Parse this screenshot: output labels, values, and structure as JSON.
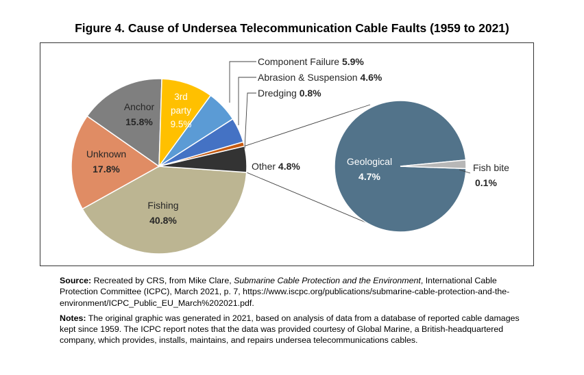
{
  "chart_data": {
    "type": "pie",
    "title": "Figure 4. Cause of Undersea Telecommunication Cable Faults (1959 to 2021)",
    "main_slices": [
      {
        "key": "fishing",
        "name": "Fishing",
        "value": 40.8,
        "value_label": "40.8%",
        "color": "#BCB592"
      },
      {
        "key": "unknown",
        "name": "Unknown",
        "value": 17.8,
        "value_label": "17.8%",
        "color": "#E08C64"
      },
      {
        "key": "anchor",
        "name": "Anchor",
        "value": 15.8,
        "value_label": "15.8%",
        "color": "#7F7F7F"
      },
      {
        "key": "third-party",
        "name": "3rd party",
        "value": 9.5,
        "value_label": "9.5%",
        "color": "#FFC000"
      },
      {
        "key": "component-failure",
        "name": "Component Failure",
        "value": 5.9,
        "value_label": "5.9%",
        "color": "#5B9BD5"
      },
      {
        "key": "abrasion",
        "name": "Abrasion & Suspension",
        "value": 4.6,
        "value_label": "4.6%",
        "color": "#4472C4"
      },
      {
        "key": "dredging",
        "name": "Dredging",
        "value": 0.8,
        "value_label": "0.8%",
        "color": "#C55A11"
      },
      {
        "key": "other",
        "name": "Other",
        "value": 4.8,
        "value_label": "4.8%",
        "color": "#333333"
      }
    ],
    "breakout_of": "Other",
    "breakout_slices": [
      {
        "key": "geological",
        "name": "Geological",
        "value": 4.7,
        "value_label": "4.7%",
        "color": "#52738A"
      },
      {
        "key": "fish-bite",
        "name": "Fish bite",
        "value": 0.1,
        "value_label": "0.1%",
        "color": "#B7B7B7"
      }
    ]
  },
  "notes": {
    "source_label": "Source:",
    "source_text_1": " Recreated by CRS, from Mike Clare, ",
    "source_italic": "Submarine Cable Protection and the Environment",
    "source_text_2": ", International Cable Protection Committee (ICPC), March 2021, p. 7, https://www.iscpc.org/publications/submarine-cable-protection-and-the-environment/ICPC_Public_EU_March%202021.pdf.",
    "notes_label": "Notes:",
    "notes_text": " The original graphic was generated in 2021, based on analysis of data from a database of reported cable damages kept since 1959. The ICPC report notes that the data was provided courtesy of Global Marine, a British-headquartered company, which provides, installs, maintains, and repairs undersea telecommunications cables."
  }
}
